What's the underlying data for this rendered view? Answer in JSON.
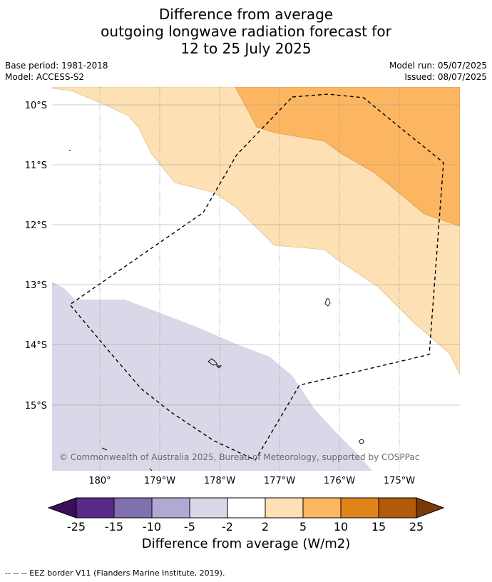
{
  "title": {
    "line1": "Difference from average",
    "line2": "outgoing longwave radiation forecast for",
    "line3": "12 to 25 July 2025"
  },
  "meta": {
    "base_period": "Base period: 1981-2018",
    "model": "Model: ACCESS-S2",
    "model_run": "Model run: 05/07/2025",
    "issued": "Issued: 08/07/2025"
  },
  "map": {
    "lat_labels": [
      "10°S",
      "11°S",
      "12°S",
      "13°S",
      "14°S",
      "15°S"
    ],
    "lon_labels": [
      "180°",
      "179°W",
      "178°W",
      "177°W",
      "176°W",
      "175°W"
    ],
    "copyright": "© Commonwealth of Australia 2025, Bureau of Meteorology, supported by COSPPac",
    "boundary_style": "dashed",
    "gridlines": true
  },
  "colorbar": {
    "ticks": [
      "-25",
      "-15",
      "-10",
      "-5",
      "-2",
      "2",
      "5",
      "10",
      "15",
      "25"
    ],
    "colors": [
      "#3a0f5a",
      "#5a2a8a",
      "#8070ae",
      "#b2a9d3",
      "#d8d8e8",
      "#ffffff",
      "#fde0b3",
      "#fcb661",
      "#e0841a",
      "#b05a0a",
      "#7a3a08"
    ],
    "label": "Difference from average (W/m2)"
  },
  "footnote": "-- -- -- EEZ border V11 (Flanders Marine Institute, 2019).",
  "region_colors": {
    "light_purple": "#d8d8e8",
    "light_orange": "#fde0b3",
    "orange": "#fcb661"
  }
}
